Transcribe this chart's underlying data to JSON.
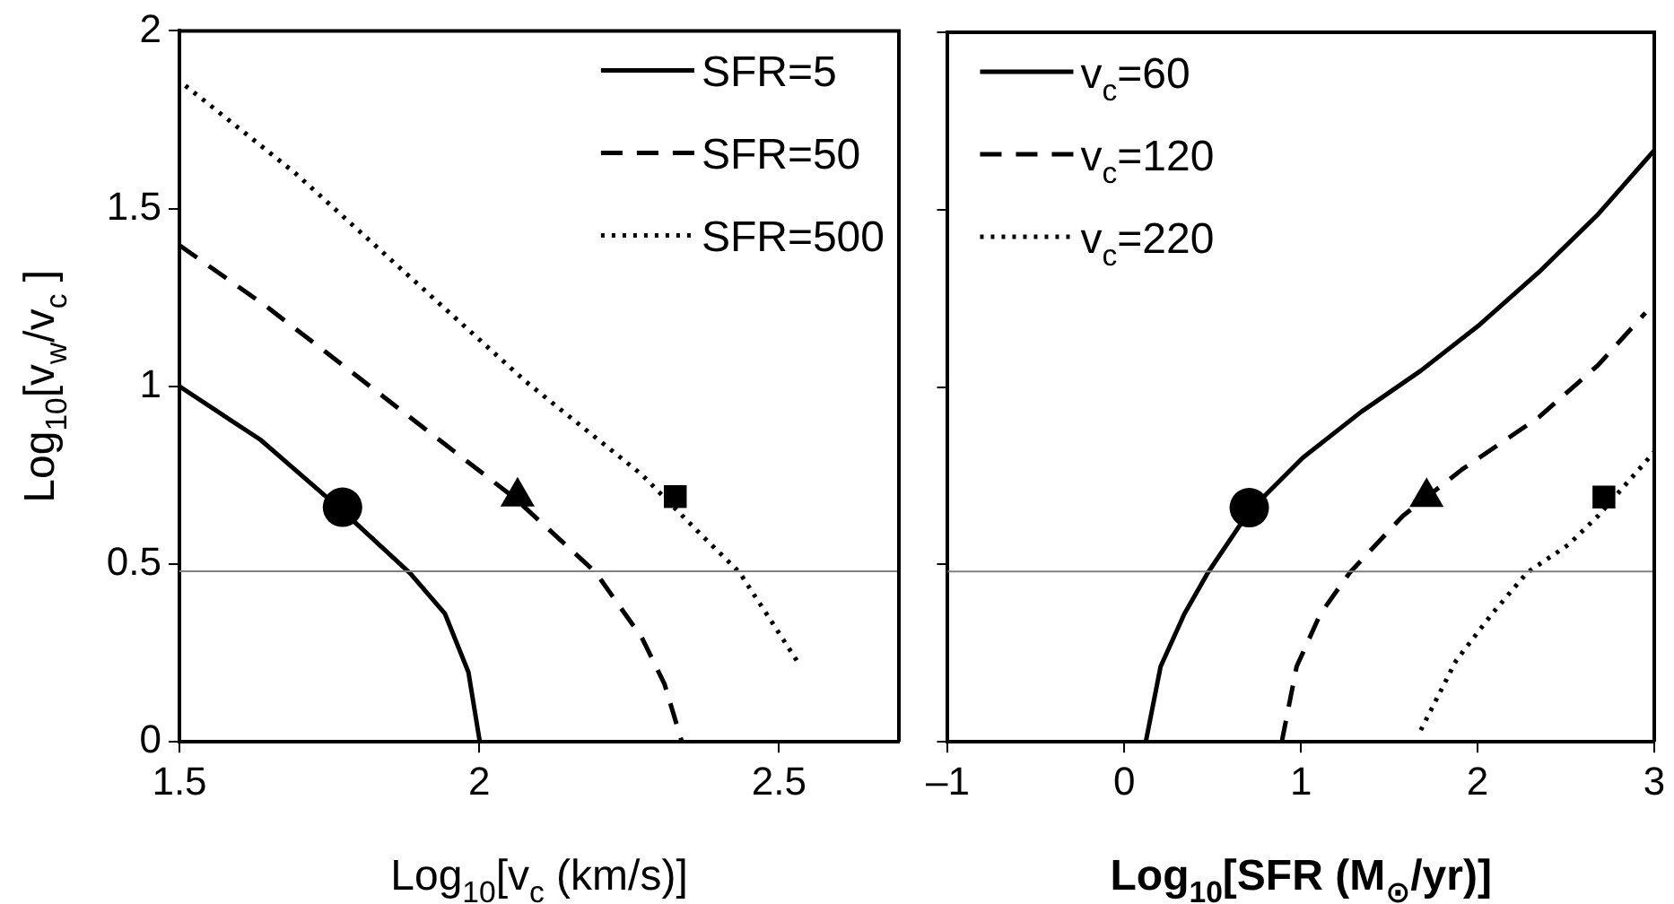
{
  "chart_data": [
    {
      "type": "line",
      "xlabel": "Log$_{10}$[v$_{c}$ (km/s)]",
      "ylabel": "Log$_{10}$[v$_{w}$/v$_{c}$ ]",
      "xlim": [
        1.5,
        2.7
      ],
      "xticks": [
        1.5,
        2,
        2.5
      ],
      "ylim": [
        0,
        2
      ],
      "yticks": [
        0,
        0.5,
        1,
        1.5,
        2
      ],
      "grid": false,
      "legend": "top right",
      "marker": "none",
      "ref_lines": [
        {
          "axis": "y",
          "value": 0.48,
          "color": "#808080"
        }
      ],
      "series": [
        {
          "name": "SFR=5",
          "color": "#000000",
          "line_style": "solid",
          "x": [
            1.5,
            1.635,
            1.772,
            1.885,
            1.943,
            1.982,
            2.001
          ],
          "values": [
            1.0,
            0.85,
            0.65,
            0.474,
            0.36,
            0.196,
            0
          ]
        },
        {
          "name": "SFR=50",
          "color": "#000000",
          "line_style": "dashed",
          "x": [
            1.5,
            1.645,
            1.789,
            1.933,
            2.059,
            2.194,
            2.271,
            2.309,
            2.338
          ],
          "values": [
            1.397,
            1.225,
            1.038,
            0.85,
            0.686,
            0.477,
            0.294,
            0.163,
            0
          ]
        },
        {
          "name": "SFR=500",
          "color": "#000000",
          "line_style": "dotted",
          "x": [
            1.51,
            1.693,
            1.885,
            2.078,
            2.271,
            2.367,
            2.434,
            2.492,
            2.536
          ],
          "values": [
            1.846,
            1.6,
            1.307,
            1.013,
            0.752,
            0.588,
            0.477,
            0.327,
            0.212
          ]
        },
        {
          "type": "scatter",
          "color": "#000000",
          "marker": "circle",
          "x": [
            1.772
          ],
          "values": [
            0.66
          ]
        },
        {
          "type": "scatter",
          "color": "#000000",
          "marker": "triangle",
          "x": [
            2.064
          ],
          "values": [
            0.69
          ]
        },
        {
          "type": "scatter",
          "color": "#000000",
          "marker": "square",
          "x": [
            2.327
          ],
          "values": [
            0.69
          ]
        }
      ]
    },
    {
      "type": "line",
      "xlabel": "Log$_{10}$[SFR (M$_{⊙}$/yr)]",
      "xlim": [
        -1,
        3
      ],
      "xticks": [
        {
          "value": -1,
          "label": "–1"
        },
        0,
        1,
        2,
        3
      ],
      "ylim": [
        0,
        2
      ],
      "yticks": [
        0,
        0.5,
        1,
        1.5,
        2
      ],
      "tick_labels": "x",
      "grid": false,
      "legend": "top left",
      "marker": "none",
      "ref_lines": [
        {
          "axis": "y",
          "value": 0.48,
          "color": "#808080"
        }
      ],
      "series": [
        {
          "name": "v$_{c}$=60",
          "color": "#000000",
          "line_style": "solid",
          "x": [
            0.121,
            0.205,
            0.339,
            0.473,
            0.707,
            1.008,
            1.343,
            1.678,
            2.012,
            2.347,
            2.682,
            3
          ],
          "values": [
            0,
            0.212,
            0.36,
            0.477,
            0.65,
            0.8,
            0.931,
            1.046,
            1.176,
            1.324,
            1.487,
            1.667
          ]
        },
        {
          "name": "v$_{c}$=120",
          "color": "#000000",
          "line_style": "dashed",
          "x": [
            0.891,
            0.975,
            1.109,
            1.276,
            1.577,
            1.912,
            2.347,
            2.682,
            2.95
          ],
          "values": [
            0,
            0.212,
            0.36,
            0.477,
            0.637,
            0.768,
            0.915,
            1.062,
            1.209
          ]
        },
        {
          "name": "v$_{c}$=220",
          "color": "#000000",
          "line_style": "dotted",
          "x": [
            1.678,
            1.878,
            2.08,
            2.28,
            2.515,
            2.682,
            3
          ],
          "values": [
            0.033,
            0.229,
            0.36,
            0.477,
            0.556,
            0.637,
            0.817
          ]
        },
        {
          "type": "scatter",
          "color": "#000000",
          "marker": "circle",
          "x": [
            0.707
          ],
          "values": [
            0.66
          ]
        },
        {
          "type": "scatter",
          "color": "#000000",
          "marker": "triangle",
          "x": [
            1.711
          ],
          "values": [
            0.69
          ]
        },
        {
          "type": "scatter",
          "color": "#000000",
          "marker": "square",
          "x": [
            2.715
          ],
          "values": [
            0.69
          ]
        }
      ]
    }
  ]
}
